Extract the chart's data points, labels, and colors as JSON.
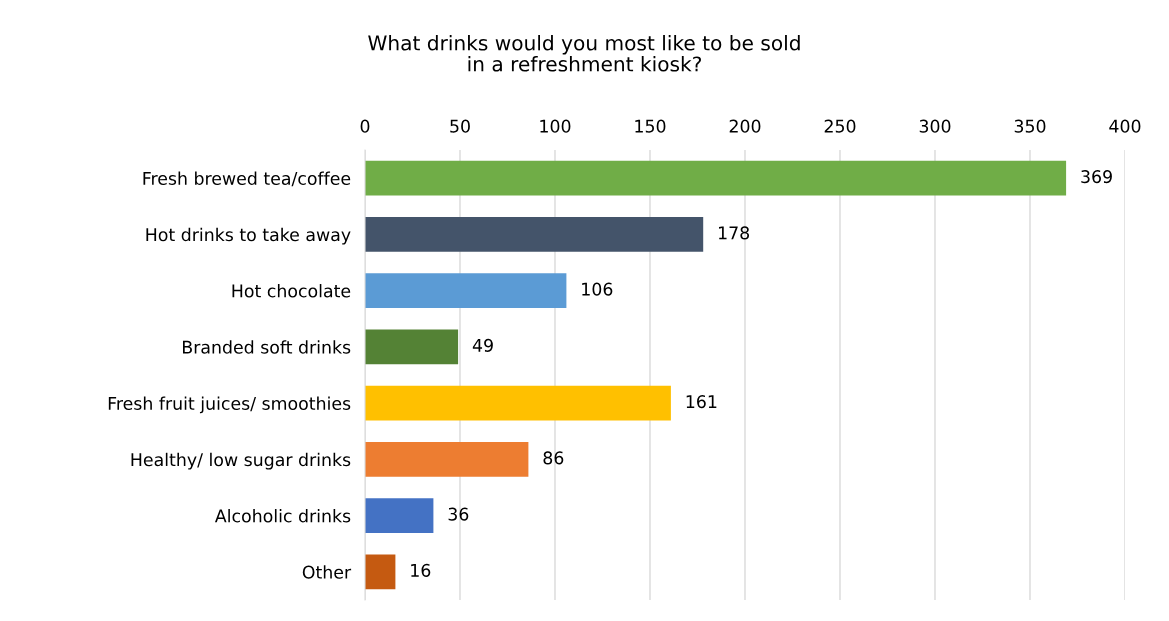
{
  "chart_data": {
    "type": "bar",
    "orientation": "horizontal",
    "title": "What drinks would you most like to be sold\nin a refreshment kiosk?",
    "categories": [
      "Fresh brewed tea/coffee",
      "Hot drinks to take away",
      "Hot chocolate",
      "Branded soft drinks",
      "Fresh fruit juices/ smoothies",
      "Healthy/ low sugar drinks",
      "Alcoholic drinks",
      "Other"
    ],
    "values": [
      369,
      178,
      106,
      49,
      161,
      86,
      36,
      16
    ],
    "colors": [
      "#70ad47",
      "#44546a",
      "#5b9bd5",
      "#548235",
      "#ffc000",
      "#ed7d31",
      "#4472c4",
      "#c55a11"
    ],
    "xlim": [
      0,
      400
    ],
    "xticks": [
      0,
      50,
      100,
      150,
      200,
      250,
      300,
      350,
      400
    ],
    "grid": "x",
    "data_labels": true
  }
}
